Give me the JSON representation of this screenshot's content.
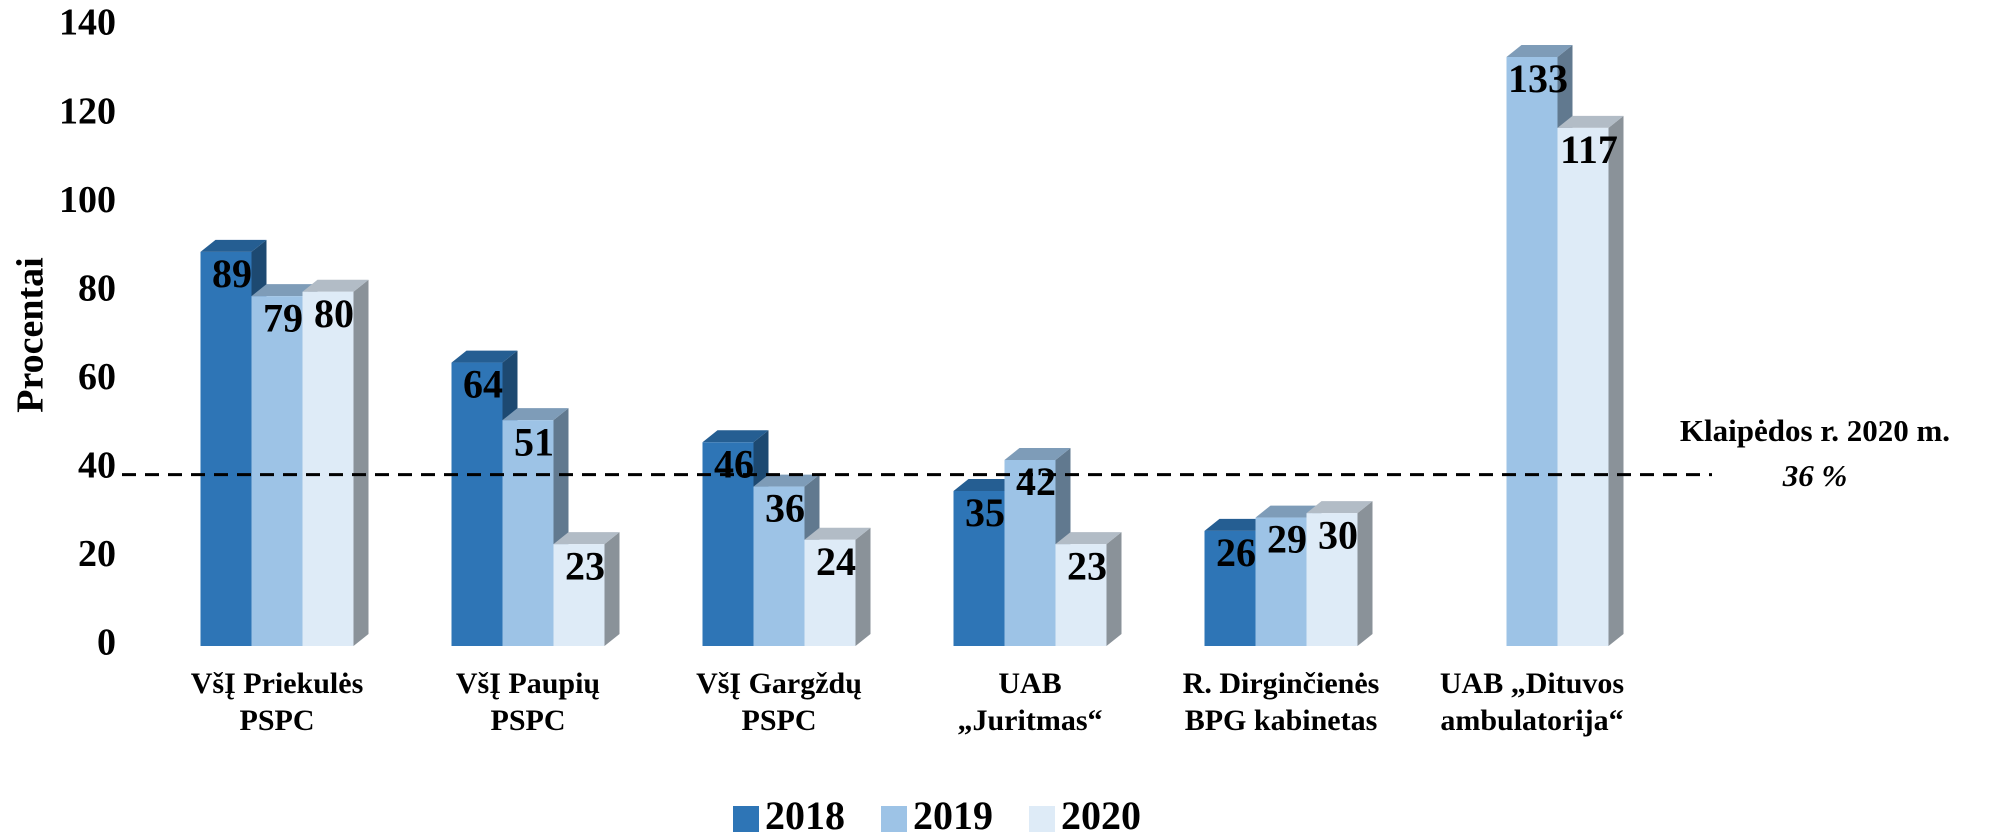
{
  "chart_data": {
    "type": "bar3d",
    "y_label": "Procentai",
    "categories": [
      [
        "VšĮ Priekulės",
        "PSPC"
      ],
      [
        "VšĮ Paupių",
        "PSPC"
      ],
      [
        "VšĮ Gargždų",
        "PSPC"
      ],
      [
        "UAB",
        "„Juritmas“"
      ],
      [
        "R. Dirginčienės",
        "BPG kabinetas"
      ],
      [
        "UAB  „Dituvos",
        "ambulatorija“"
      ]
    ],
    "series": [
      {
        "name": "2018",
        "color": "#2e75b6",
        "values": [
          89,
          64,
          46,
          35,
          26,
          null
        ]
      },
      {
        "name": "2019",
        "color": "#9dc3e6",
        "values": [
          79,
          51,
          36,
          42,
          29,
          133
        ]
      },
      {
        "name": "2020",
        "color": "#deebf7",
        "values": [
          80,
          23,
          24,
          23,
          30,
          117
        ]
      }
    ],
    "ylim": [
      0,
      140
    ],
    "yticks": [
      0,
      20,
      40,
      60,
      80,
      100,
      120,
      140
    ],
    "grid": false,
    "legend": "bottom",
    "reference_line": {
      "value": 36,
      "label": [
        "Klaipėdos r. 2020 m.",
        "36 %"
      ]
    }
  }
}
